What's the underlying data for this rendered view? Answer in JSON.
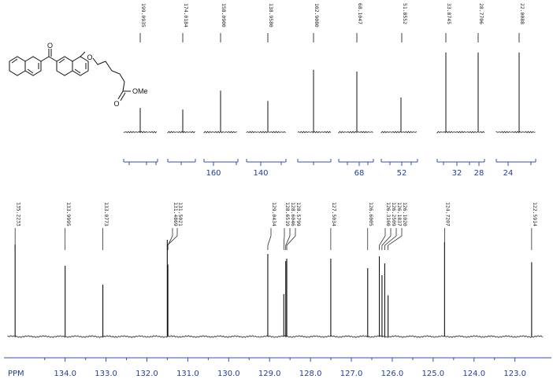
{
  "chart_data": {
    "type": "line",
    "title": "",
    "xlabel": "PPM",
    "molecule": {
      "substituent_label": "OMe"
    },
    "insets": [
      {
        "peaks": [
          {
            "label": "199.0935"
          }
        ],
        "scale_ticks": []
      },
      {
        "peaks": [
          {
            "label": "174.0184"
          }
        ],
        "scale_ticks": []
      },
      {
        "peaks": [
          {
            "label": "158.0900"
          }
        ],
        "scale_ticks": [
          "160"
        ]
      },
      {
        "peaks": [
          {
            "label": "138.9580"
          }
        ],
        "scale_ticks": [
          "140"
        ]
      },
      {
        "peaks": [
          {
            "label": "102.9080"
          }
        ],
        "scale_ticks": []
      },
      {
        "peaks": [
          {
            "label": "68.1047"
          }
        ],
        "scale_ticks": [
          "68"
        ]
      },
      {
        "peaks": [
          {
            "label": "51.8552"
          }
        ],
        "scale_ticks": [
          "52"
        ]
      },
      {
        "peaks": [
          {
            "label": "33.8745"
          },
          {
            "label": "28.7706"
          }
        ],
        "scale_ticks": [
          "32",
          "28"
        ]
      },
      {
        "peaks": [
          {
            "label": "22.0088"
          }
        ],
        "scale_ticks": [
          "24"
        ]
      }
    ],
    "main": {
      "xlim": [
        135.4,
        122.3
      ],
      "ticks": [
        "134.0",
        "133.0",
        "132.0",
        "131.0",
        "130.0",
        "129.0",
        "128.0",
        "127.0",
        "126.0",
        "125.0",
        "124.0",
        "123.0"
      ],
      "peaks": [
        {
          "x": 135.2233,
          "label": "135.2233",
          "height": 0.78
        },
        {
          "x": 133.9995,
          "label": "133.9995",
          "height": 0.6
        },
        {
          "x": 133.0773,
          "label": "133.0773",
          "height": 0.44
        },
        {
          "x": 131.4869,
          "label": "131.4869",
          "height": 0.61
        },
        {
          "x": 131.5021,
          "label": "131.5021",
          "height": 0.82
        },
        {
          "x": 129.0434,
          "label": "129.0434",
          "height": 0.7
        },
        {
          "x": 128.6519,
          "label": "128.6519",
          "height": 0.36
        },
        {
          "x": 128.6046,
          "label": "128.6046",
          "height": 0.64
        },
        {
          "x": 128.5799,
          "label": "128.5799",
          "height": 0.66
        },
        {
          "x": 127.5034,
          "label": "127.5034",
          "height": 0.66
        },
        {
          "x": 126.6005,
          "label": "126.6005",
          "height": 0.58
        },
        {
          "x": 126.316,
          "label": "126.3160",
          "height": 0.68
        },
        {
          "x": 126.2509,
          "label": "126.2509",
          "height": 0.52
        },
        {
          "x": 126.1837,
          "label": "126.1837",
          "height": 0.62
        },
        {
          "x": 126.102,
          "label": "126.1020",
          "height": 0.35
        },
        {
          "x": 124.7207,
          "label": "124.7207",
          "height": 0.8
        },
        {
          "x": 122.5914,
          "label": "122.5914",
          "height": 0.63
        }
      ]
    }
  }
}
